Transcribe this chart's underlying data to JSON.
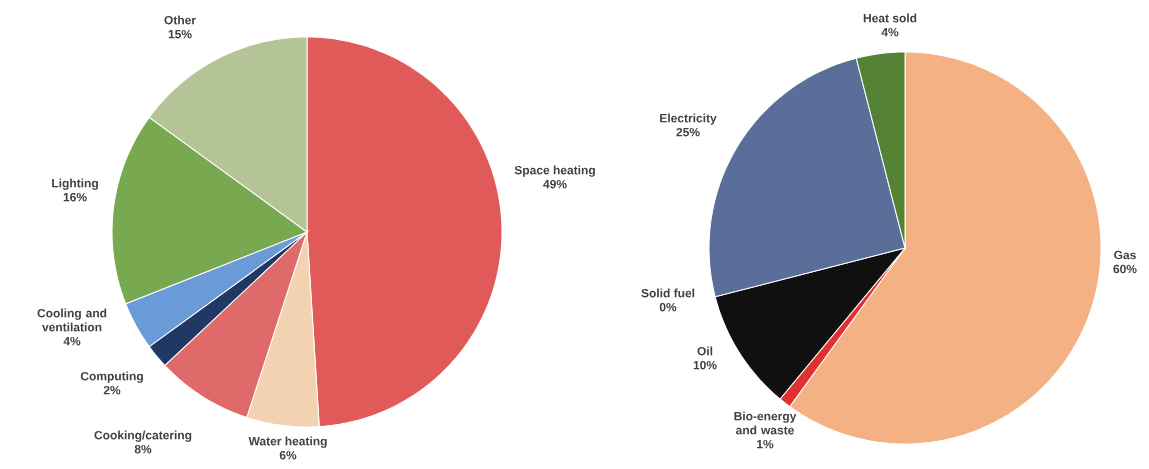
{
  "chart_data": [
    {
      "type": "pie",
      "categories": [
        "Space heating",
        "Water heating",
        "Cooking/catering",
        "Computing",
        "Cooling and ventilation",
        "Lighting",
        "Other"
      ],
      "values": [
        49,
        6,
        8,
        2,
        4,
        16,
        15
      ],
      "value_labels": [
        "49%",
        "6%",
        "8%",
        "2%",
        "4%",
        "16%",
        "15%"
      ],
      "colors": [
        "#e05a5a",
        "#f2d2b0",
        "#e06a6a",
        "#1f3864",
        "#6a9ad8",
        "#78a850",
        "#b4c496"
      ]
    },
    {
      "type": "pie",
      "categories": [
        "Gas",
        "Bio-energy and waste",
        "Oil",
        "Solid fuel",
        "Electricity",
        "Heat sold"
      ],
      "values": [
        60,
        1,
        10,
        0,
        25,
        4
      ],
      "value_labels": [
        "60%",
        "1%",
        "10%",
        "0%",
        "25%",
        "4%"
      ],
      "colors": [
        "#f4b183",
        "#e03030",
        "#101010",
        "#808080",
        "#5a6e9a",
        "#548235"
      ]
    }
  ]
}
